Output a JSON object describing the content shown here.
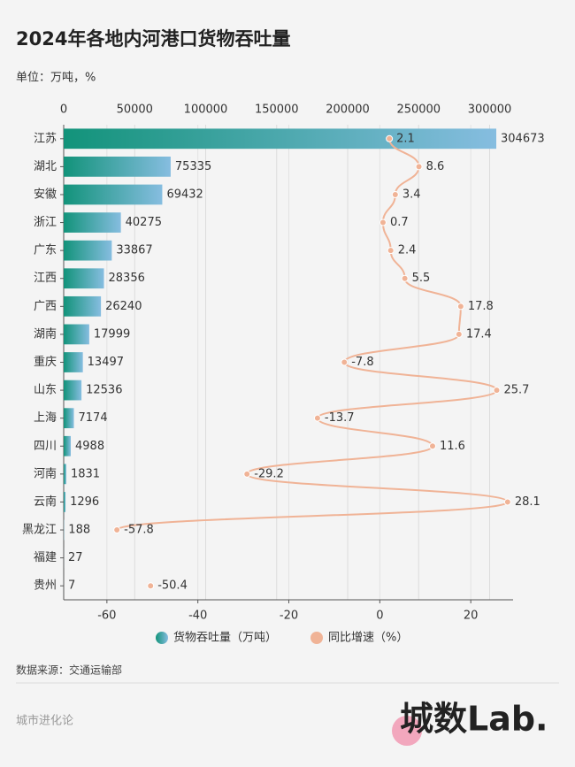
{
  "chart_data": {
    "type": "bar",
    "title": "2024年各地内河港口货物吞吐量",
    "subtitle": "单位：万吨，%",
    "categories": [
      "江苏",
      "湖北",
      "安徽",
      "浙江",
      "广东",
      "江西",
      "广西",
      "湖南",
      "重庆",
      "山东",
      "上海",
      "四川",
      "河南",
      "云南",
      "黑龙江",
      "福建",
      "贵州"
    ],
    "series": [
      {
        "name": "货物吞吐量（万吨）",
        "type": "bar",
        "color": "#12937a",
        "color_end": "#86bde0",
        "values": [
          304673,
          75335,
          69432,
          40275,
          33867,
          28356,
          26240,
          17999,
          13497,
          12536,
          7174,
          4988,
          1831,
          1296,
          188,
          27,
          7
        ]
      },
      {
        "name": "同比增速（%）",
        "type": "line",
        "axis": "x2",
        "color": "#f0b396",
        "values": [
          2.1,
          8.6,
          3.4,
          0.7,
          2.4,
          5.5,
          17.8,
          17.4,
          -7.8,
          25.7,
          -13.7,
          11.6,
          -29.2,
          28.1,
          -57.8,
          null,
          -50.4
        ]
      }
    ],
    "xlim": [
      0,
      316500
    ],
    "xticks": [
      0,
      50000,
      100000,
      150000,
      200000,
      250000,
      300000
    ],
    "x2lim": [
      -69.5,
      29.3
    ],
    "x2ticks": [
      -60,
      -40,
      -20,
      0,
      20
    ],
    "grid": true,
    "source": "数据来源：交通运输部",
    "footer": "城市进化论",
    "logo": "城数Lab."
  }
}
